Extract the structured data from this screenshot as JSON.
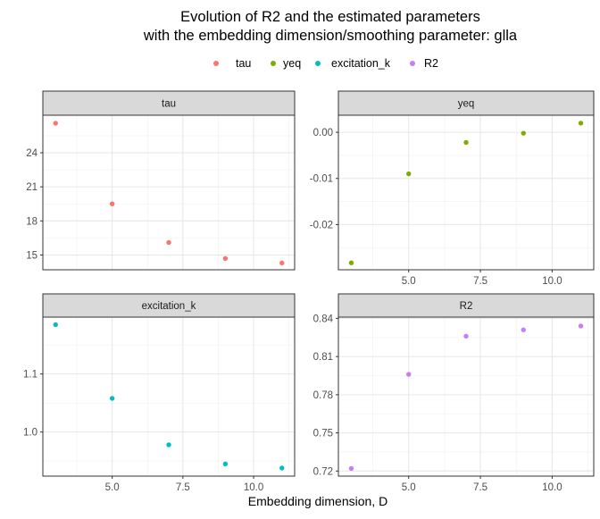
{
  "title_line1": "Evolution of R2 and the estimated parameters",
  "title_line2": "with the embedding dimension/smoothing parameter: glla",
  "xlabel": "Embedding dimension, D",
  "legend": [
    {
      "label": "tau",
      "color": "#F8766D"
    },
    {
      "label": "yeq",
      "color": "#7CAE00"
    },
    {
      "label": "excitation_k",
      "color": "#00BFC4"
    },
    {
      "label": "R2",
      "color": "#C77CFF"
    }
  ],
  "chart_data": [
    {
      "type": "scatter",
      "facet": "tau",
      "color": "#F8766D",
      "x": [
        3,
        5,
        7,
        9,
        11
      ],
      "y": [
        26.6,
        19.5,
        16.1,
        14.7,
        14.3
      ],
      "xlim": [
        2.55,
        11.45
      ],
      "ylim": [
        13.7,
        27.3
      ],
      "xticks": [
        5,
        7.5,
        10
      ],
      "xticklabels": [
        "5.0",
        "7.5",
        "10.0"
      ],
      "yticks": [
        15,
        18,
        21,
        24
      ],
      "yticklabels": [
        "15",
        "18",
        "21",
        "24"
      ],
      "grid": true,
      "show_x_axis": false
    },
    {
      "type": "scatter",
      "facet": "yeq",
      "color": "#7CAE00",
      "x": [
        3,
        5,
        7,
        9,
        11
      ],
      "y": [
        -0.0283,
        -0.009,
        -0.0022,
        -0.0002,
        0.002
      ],
      "xlim": [
        2.55,
        11.45
      ],
      "ylim": [
        -0.0298,
        0.0037
      ],
      "xticks": [
        5,
        7.5,
        10
      ],
      "xticklabels": [
        "5.0",
        "7.5",
        "10.0"
      ],
      "yticks": [
        -0.02,
        -0.01,
        0.0
      ],
      "yticklabels": [
        "-0.02",
        "-0.01",
        "0.00"
      ],
      "grid": true,
      "show_x_axis": true
    },
    {
      "type": "scatter",
      "facet": "excitation_k",
      "color": "#00BFC4",
      "x": [
        3,
        5,
        7,
        9,
        11
      ],
      "y": [
        1.185,
        1.058,
        0.978,
        0.945,
        0.938
      ],
      "xlim": [
        2.55,
        11.45
      ],
      "ylim": [
        0.924,
        1.198
      ],
      "xticks": [
        5,
        7.5,
        10
      ],
      "xticklabels": [
        "5.0",
        "7.5",
        "10.0"
      ],
      "yticks": [
        1.0,
        1.1
      ],
      "yticklabels": [
        "1.0",
        "1.1"
      ],
      "grid": true,
      "show_x_axis": true
    },
    {
      "type": "scatter",
      "facet": "R2",
      "color": "#C77CFF",
      "x": [
        3,
        5,
        7,
        9,
        11
      ],
      "y": [
        0.722,
        0.796,
        0.826,
        0.831,
        0.834
      ],
      "xlim": [
        2.55,
        11.45
      ],
      "ylim": [
        0.716,
        0.841
      ],
      "xticks": [
        5,
        7.5,
        10
      ],
      "xticklabels": [
        "5.0",
        "7.5",
        "10.0"
      ],
      "yticks": [
        0.72,
        0.75,
        0.78,
        0.81,
        0.84
      ],
      "yticklabels": [
        "0.72",
        "0.75",
        "0.78",
        "0.81",
        "0.84"
      ],
      "grid": true,
      "show_x_axis": true
    }
  ]
}
